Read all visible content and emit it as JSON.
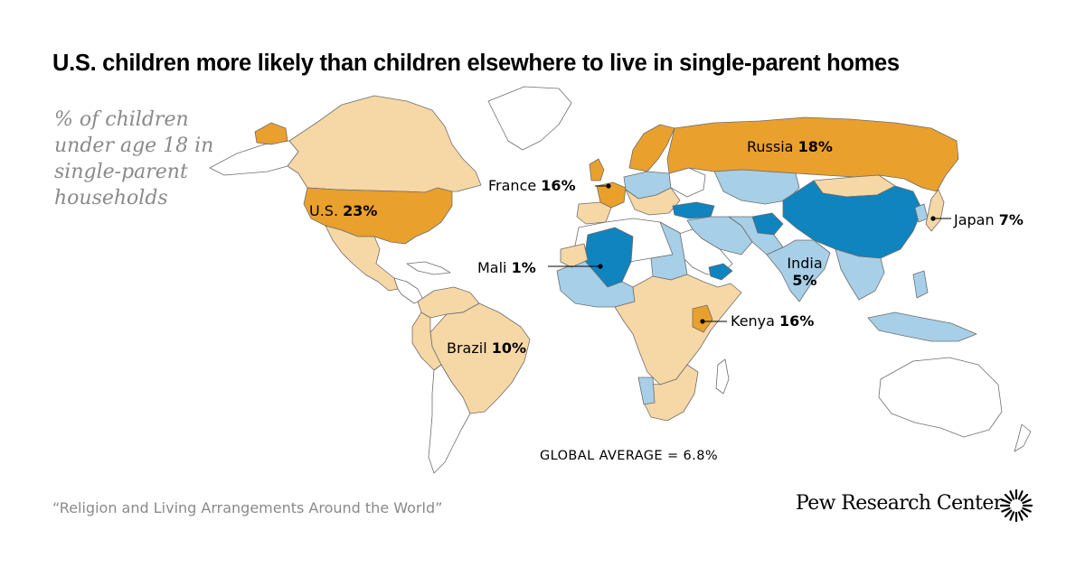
{
  "title": "U.S. children more likely than children elsewhere to live in single-parent homes",
  "subtitle": "% of children under age 18 in single-parent households",
  "global_average": "GLOBAL AVERAGE = 6.8%",
  "source": "“Religion and Living Arrangements Around the World”",
  "brand": "Pew Research Center",
  "colors": {
    "high": "#e9a02c",
    "mid_high": "#f6d7a6",
    "low": "#a7cfe7",
    "lowest": "#0f84be",
    "no_data": "#ffffff",
    "border": "#6e6e6e"
  },
  "callouts": [
    {
      "country": "U.S.",
      "value": "23%"
    },
    {
      "country": "Russia",
      "value": "18%"
    },
    {
      "country": "France",
      "value": "16%"
    },
    {
      "country": "Japan",
      "value": "7%"
    },
    {
      "country": "Mali",
      "value": "1%"
    },
    {
      "country": "India",
      "value": "5%"
    },
    {
      "country": "Kenya",
      "value": "16%"
    },
    {
      "country": "Brazil",
      "value": "10%"
    }
  ]
}
